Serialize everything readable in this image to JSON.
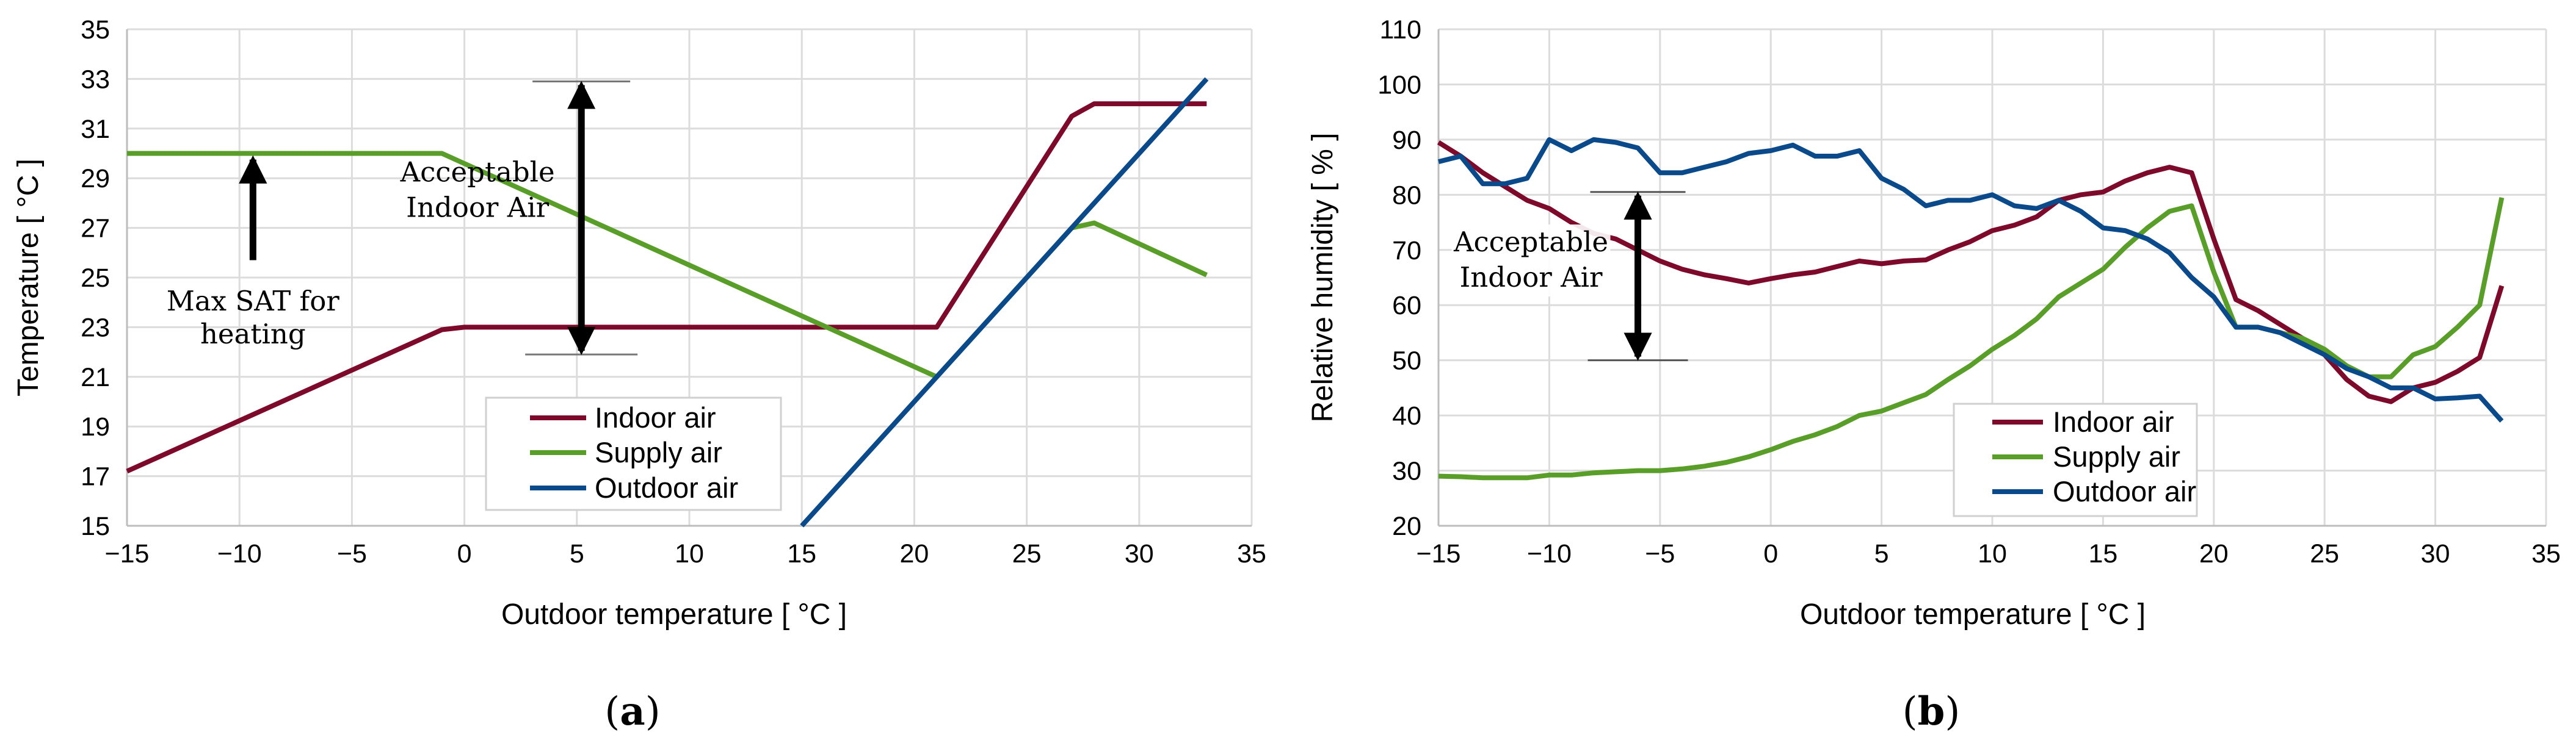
{
  "colors": {
    "indoor": "#7d0a2a",
    "supply": "#5a9e2a",
    "outdoor": "#0b4a8a"
  },
  "chart_data": [
    {
      "type": "line",
      "caption": "a",
      "xlabel": "Outdoor temperature [ °C ]",
      "ylabel": "Temperature [ °C ]",
      "xlim": [
        -15,
        35
      ],
      "ylim": [
        15,
        35
      ],
      "xticks": [
        -15,
        -10,
        -5,
        0,
        5,
        10,
        15,
        20,
        25,
        30,
        35
      ],
      "xtick_labels": [
        "−15",
        "−10",
        "−5",
        "0",
        "5",
        "10",
        "15",
        "20",
        "25",
        "30",
        "35"
      ],
      "yticks": [
        15,
        17,
        19,
        21,
        23,
        25,
        27,
        29,
        31,
        33,
        35
      ],
      "ytick_labels": [
        "15",
        "17",
        "19",
        "21",
        "23",
        "25",
        "27",
        "29",
        "31",
        "33",
        "35"
      ],
      "series": [
        {
          "name": "Indoor air",
          "key": "indoor",
          "points": [
            [
              -15,
              17.2
            ],
            [
              -1,
              22.9
            ],
            [
              0,
              23
            ],
            [
              21,
              23
            ],
            [
              27,
              31.5
            ],
            [
              28,
              32
            ],
            [
              33,
              32
            ]
          ]
        },
        {
          "name": "Supply air",
          "key": "supply",
          "points": [
            [
              -15,
              30
            ],
            [
              -1,
              30
            ],
            [
              21,
              21
            ],
            [
              27,
              27
            ],
            [
              28,
              27.2
            ],
            [
              33,
              25.1
            ]
          ]
        },
        {
          "name": "Outdoor air",
          "key": "outdoor",
          "points": [
            [
              15,
              15
            ],
            [
              33,
              33
            ]
          ]
        }
      ],
      "annotations": {
        "acceptable": {
          "lines": [
            "Acceptable",
            "Indoor Air"
          ],
          "x": 5.2,
          "y_from": 21.9,
          "y_to": 32.9
        },
        "max_sat": {
          "lines": [
            "Max SAT for",
            "heating"
          ],
          "x": -9.4,
          "y_from": 25.7,
          "y_to": 29.9
        }
      }
    },
    {
      "type": "line",
      "caption": "b",
      "xlabel": "Outdoor temperature [ °C ]",
      "ylabel": "Relative humidity [ % ]",
      "xlim": [
        -15,
        35
      ],
      "ylim": [
        20,
        110
      ],
      "xticks": [
        -15,
        -10,
        -5,
        0,
        5,
        10,
        15,
        20,
        25,
        30,
        35
      ],
      "xtick_labels": [
        "−15",
        "−10",
        "−5",
        "0",
        "5",
        "10",
        "15",
        "20",
        "25",
        "30",
        "35"
      ],
      "yticks": [
        20,
        30,
        40,
        50,
        60,
        70,
        80,
        90,
        100,
        110
      ],
      "ytick_labels": [
        "20",
        "30",
        "40",
        "50",
        "60",
        "70",
        "80",
        "90",
        "100",
        "110"
      ],
      "series": [
        {
          "name": "Indoor air",
          "key": "indoor",
          "points": [
            [
              -15,
              89.5
            ],
            [
              -14,
              87
            ],
            [
              -13,
              84
            ],
            [
              -12,
              81.5
            ],
            [
              -11,
              79
            ],
            [
              -10,
              77.5
            ],
            [
              -9,
              75
            ],
            [
              -8,
              73
            ],
            [
              -7,
              72
            ],
            [
              -6,
              70
            ],
            [
              -5,
              68
            ],
            [
              -4,
              66.5
            ],
            [
              -3,
              65.5
            ],
            [
              -2,
              64.8
            ],
            [
              -1,
              64
            ],
            [
              0,
              64.8
            ],
            [
              1,
              65.5
            ],
            [
              2,
              66
            ],
            [
              3,
              67
            ],
            [
              4,
              68
            ],
            [
              5,
              67.5
            ],
            [
              6,
              68
            ],
            [
              7,
              68.2
            ],
            [
              8,
              70
            ],
            [
              9,
              71.5
            ],
            [
              10,
              73.5
            ],
            [
              11,
              74.5
            ],
            [
              12,
              76
            ],
            [
              13,
              79
            ],
            [
              14,
              80
            ],
            [
              15,
              80.5
            ],
            [
              16,
              82.5
            ],
            [
              17,
              84
            ],
            [
              18,
              85
            ],
            [
              19,
              84
            ],
            [
              20,
              72
            ],
            [
              21,
              61
            ],
            [
              22,
              59
            ],
            [
              23,
              56.5
            ],
            [
              24,
              54
            ],
            [
              25,
              51
            ],
            [
              26,
              46.5
            ],
            [
              27,
              43.5
            ],
            [
              28,
              42.5
            ],
            [
              29,
              45
            ],
            [
              30,
              46
            ],
            [
              31,
              48
            ],
            [
              32,
              50.5
            ],
            [
              33,
              63.5
            ]
          ]
        },
        {
          "name": "Supply air",
          "key": "supply",
          "points": [
            [
              -15,
              29
            ],
            [
              -14,
              28.9
            ],
            [
              -13,
              28.7
            ],
            [
              -12,
              28.7
            ],
            [
              -11,
              28.7
            ],
            [
              -10,
              29.2
            ],
            [
              -9,
              29.2
            ],
            [
              -8,
              29.6
            ],
            [
              -7,
              29.8
            ],
            [
              -6,
              30
            ],
            [
              -5,
              30
            ],
            [
              -4,
              30.3
            ],
            [
              -3,
              30.8
            ],
            [
              -2,
              31.5
            ],
            [
              -1,
              32.5
            ],
            [
              0,
              33.8
            ],
            [
              1,
              35.3
            ],
            [
              2,
              36.5
            ],
            [
              3,
              38
            ],
            [
              4,
              40
            ],
            [
              5,
              40.8
            ],
            [
              6,
              42.3
            ],
            [
              7,
              43.8
            ],
            [
              8,
              46.5
            ],
            [
              9,
              49
            ],
            [
              10,
              52
            ],
            [
              11,
              54.5
            ],
            [
              12,
              57.5
            ],
            [
              13,
              61.5
            ],
            [
              14,
              64
            ],
            [
              15,
              66.5
            ],
            [
              16,
              70.5
            ],
            [
              17,
              74
            ],
            [
              18,
              77
            ],
            [
              19,
              78
            ],
            [
              20,
              66
            ],
            [
              21,
              56
            ],
            [
              22,
              56
            ],
            [
              23,
              55
            ],
            [
              24,
              54
            ],
            [
              25,
              52
            ],
            [
              26,
              49
            ],
            [
              27,
              47
            ],
            [
              28,
              47
            ],
            [
              29,
              51
            ],
            [
              30,
              52.5
            ],
            [
              31,
              56
            ],
            [
              32,
              60
            ],
            [
              33,
              79.5
            ]
          ]
        },
        {
          "name": "Outdoor air",
          "key": "outdoor",
          "points": [
            [
              -15,
              86
            ],
            [
              -14,
              87
            ],
            [
              -13,
              82
            ],
            [
              -12,
              82
            ],
            [
              -11,
              83
            ],
            [
              -10,
              90
            ],
            [
              -9,
              88
            ],
            [
              -8,
              90
            ],
            [
              -7,
              89.5
            ],
            [
              -6,
              88.5
            ],
            [
              -5,
              84
            ],
            [
              -4,
              84
            ],
            [
              -3,
              85
            ],
            [
              -2,
              86
            ],
            [
              -1,
              87.5
            ],
            [
              0,
              88
            ],
            [
              1,
              89
            ],
            [
              2,
              87
            ],
            [
              3,
              87
            ],
            [
              4,
              88
            ],
            [
              5,
              83
            ],
            [
              6,
              81
            ],
            [
              7,
              78
            ],
            [
              8,
              79
            ],
            [
              9,
              79
            ],
            [
              10,
              80
            ],
            [
              11,
              78
            ],
            [
              12,
              77.5
            ],
            [
              13,
              79
            ],
            [
              14,
              77
            ],
            [
              15,
              74
            ],
            [
              16,
              73.5
            ],
            [
              17,
              72
            ],
            [
              18,
              69.5
            ],
            [
              19,
              65
            ],
            [
              20,
              61.5
            ],
            [
              21,
              56
            ],
            [
              22,
              56
            ],
            [
              23,
              55
            ],
            [
              24,
              53
            ],
            [
              25,
              51
            ],
            [
              26,
              48.5
            ],
            [
              27,
              47
            ],
            [
              28,
              45
            ],
            [
              29,
              45
            ],
            [
              30,
              43
            ],
            [
              31,
              43.2
            ],
            [
              32,
              43.5
            ],
            [
              33,
              39
            ]
          ]
        }
      ],
      "annotations": {
        "acceptable": {
          "lines": [
            "Acceptable",
            "Indoor Air"
          ],
          "x": -6,
          "y_from": 50,
          "y_to": 80.5
        }
      }
    }
  ]
}
